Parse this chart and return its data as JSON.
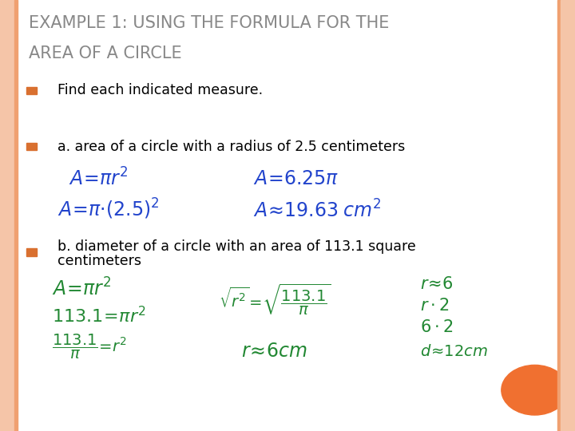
{
  "bg_color": "#ffffff",
  "border_color_light": "#f5c5a8",
  "border_color_dark": "#f0a070",
  "title_line1": "EXAMPLE 1: USING THE FORMULA FOR THE",
  "title_line2": "AREA OF A CIRCLE",
  "title_color": "#888888",
  "bullet_color": "#d97030",
  "bullet1": "Find each indicated measure.",
  "bullet2_a": "a. area of a circle with a radius of 2.5 centimeters",
  "text_color": "#000000",
  "handwriting_color_blue": "#2244cc",
  "handwriting_color_green": "#228833",
  "orange_circle_color": "#f07030",
  "font_size_title": 15,
  "font_size_body": 12.5
}
